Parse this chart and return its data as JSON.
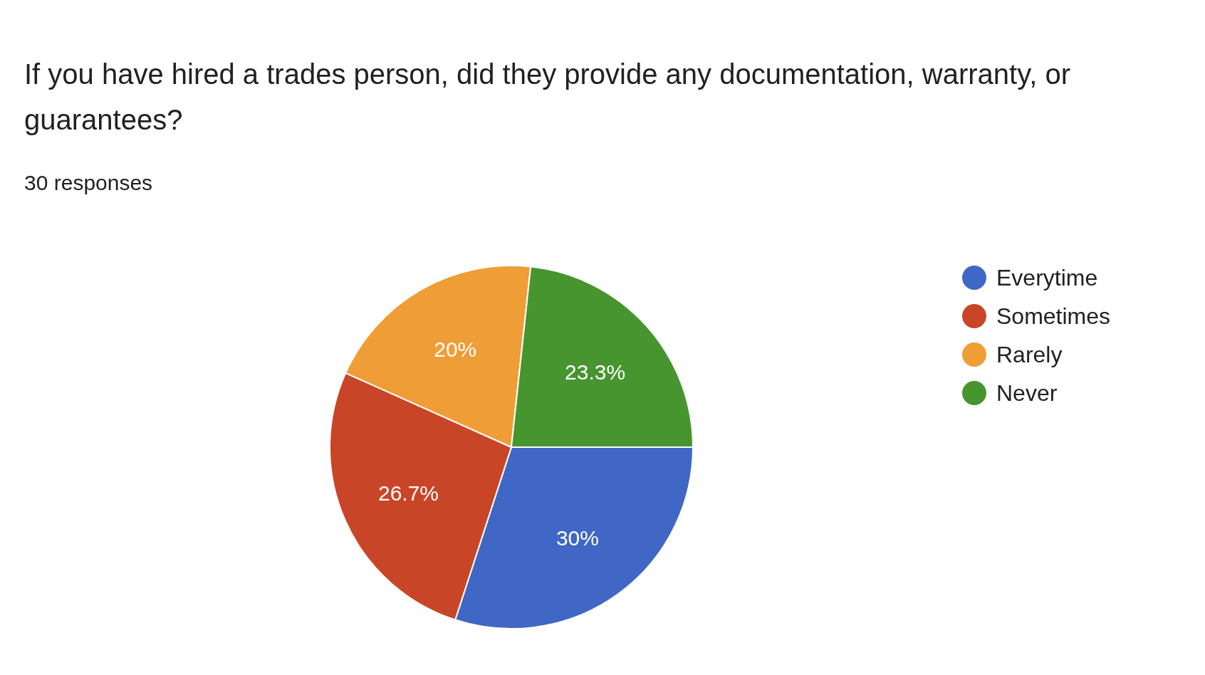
{
  "chart_data": {
    "type": "pie",
    "title": "If you have hired a trades person, did they provide any documentation, warranty, or guarantees?",
    "subtitle": "30 responses",
    "categories": [
      "Everytime",
      "Sometimes",
      "Rarely",
      "Never"
    ],
    "values": [
      30,
      26.7,
      20,
      23.3
    ],
    "colors": [
      "#4066c6",
      "#c94527",
      "#ef9d37",
      "#46952f"
    ],
    "value_labels": [
      "30%",
      "26.7%",
      "20%",
      "23.3%"
    ],
    "legend": "right"
  }
}
